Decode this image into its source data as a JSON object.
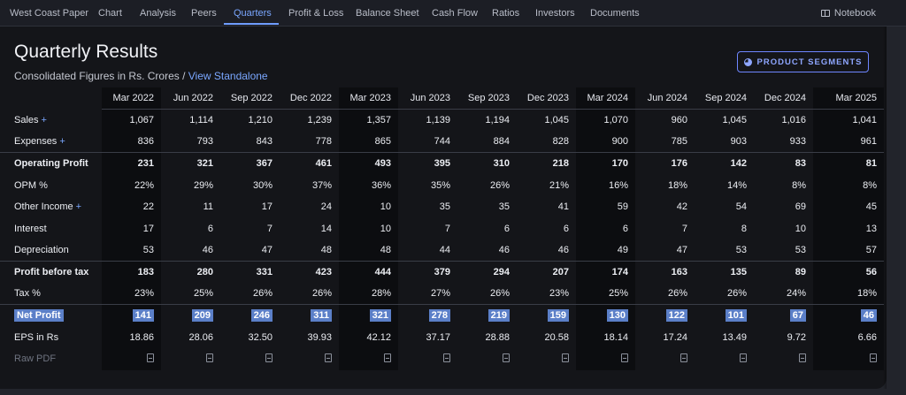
{
  "nav": {
    "tabs": [
      {
        "label": "West Coast Paper",
        "active": false
      },
      {
        "label": "Chart",
        "active": false
      },
      {
        "label": "Analysis",
        "active": false
      },
      {
        "label": "Peers",
        "active": false
      },
      {
        "label": "Quarters",
        "active": true
      },
      {
        "label": "Profit & Loss",
        "active": false
      },
      {
        "label": "Balance Sheet",
        "active": false
      },
      {
        "label": "Cash Flow",
        "active": false
      },
      {
        "label": "Ratios",
        "active": false
      },
      {
        "label": "Investors",
        "active": false
      },
      {
        "label": "Documents",
        "active": false
      }
    ],
    "notebook_label": "Notebook"
  },
  "section": {
    "title": "Quarterly Results",
    "subtitle_prefix": "Consolidated Figures in Rs. Crores / ",
    "subtitle_link": "View Standalone",
    "segments_button": "PRODUCT SEGMENTS"
  },
  "table": {
    "columns": [
      "Mar 2022",
      "Jun 2022",
      "Sep 2022",
      "Dec 2022",
      "Mar 2023",
      "Jun 2023",
      "Sep 2023",
      "Dec 2023",
      "Mar 2024",
      "Jun 2024",
      "Sep 2024",
      "Dec 2024",
      "Mar 2025"
    ],
    "rows": [
      {
        "label": "Sales",
        "expandable": true,
        "values": [
          "1,067",
          "1,114",
          "1,210",
          "1,239",
          "1,357",
          "1,139",
          "1,194",
          "1,045",
          "1,070",
          "960",
          "1,045",
          "1,016",
          "1,041"
        ]
      },
      {
        "label": "Expenses",
        "expandable": true,
        "values": [
          "836",
          "793",
          "843",
          "778",
          "865",
          "744",
          "884",
          "828",
          "900",
          "785",
          "903",
          "933",
          "961"
        ]
      },
      {
        "label": "Operating Profit",
        "bold": true,
        "sep": true,
        "values": [
          "231",
          "321",
          "367",
          "461",
          "493",
          "395",
          "310",
          "218",
          "170",
          "176",
          "142",
          "83",
          "81"
        ]
      },
      {
        "label": "OPM %",
        "values": [
          "22%",
          "29%",
          "30%",
          "37%",
          "36%",
          "35%",
          "26%",
          "21%",
          "16%",
          "18%",
          "14%",
          "8%",
          "8%"
        ]
      },
      {
        "label": "Other Income",
        "expandable": true,
        "values": [
          "22",
          "11",
          "17",
          "24",
          "10",
          "35",
          "35",
          "41",
          "59",
          "42",
          "54",
          "69",
          "45"
        ]
      },
      {
        "label": "Interest",
        "values": [
          "17",
          "6",
          "7",
          "14",
          "10",
          "7",
          "6",
          "6",
          "6",
          "7",
          "8",
          "10",
          "13"
        ]
      },
      {
        "label": "Depreciation",
        "values": [
          "53",
          "46",
          "47",
          "48",
          "48",
          "44",
          "46",
          "46",
          "49",
          "47",
          "53",
          "53",
          "57"
        ]
      },
      {
        "label": "Profit before tax",
        "bold": true,
        "sep": true,
        "values": [
          "183",
          "280",
          "331",
          "423",
          "444",
          "379",
          "294",
          "207",
          "174",
          "163",
          "135",
          "89",
          "56"
        ]
      },
      {
        "label": "Tax %",
        "values": [
          "23%",
          "25%",
          "26%",
          "26%",
          "28%",
          "27%",
          "26%",
          "23%",
          "25%",
          "26%",
          "26%",
          "24%",
          "18%"
        ]
      },
      {
        "label": "Net Profit",
        "bold": true,
        "sep": true,
        "highlight": true,
        "values": [
          "141",
          "209",
          "246",
          "311",
          "321",
          "278",
          "219",
          "159",
          "130",
          "122",
          "101",
          "67",
          "46"
        ]
      },
      {
        "label": "EPS in Rs",
        "values": [
          "18.86",
          "28.06",
          "32.50",
          "39.93",
          "42.12",
          "37.17",
          "28.88",
          "20.58",
          "18.14",
          "17.24",
          "13.49",
          "9.72",
          "6.66"
        ]
      }
    ],
    "raw_pdf_label": "Raw PDF",
    "pdf_icon": "pdf-file-icon",
    "expand_icon": "+"
  },
  "colors": {
    "accent": "#7aa7ff",
    "highlight": "#5b7fc8",
    "card_bg": "#141519",
    "stripe_bg": "#0c0d10"
  }
}
